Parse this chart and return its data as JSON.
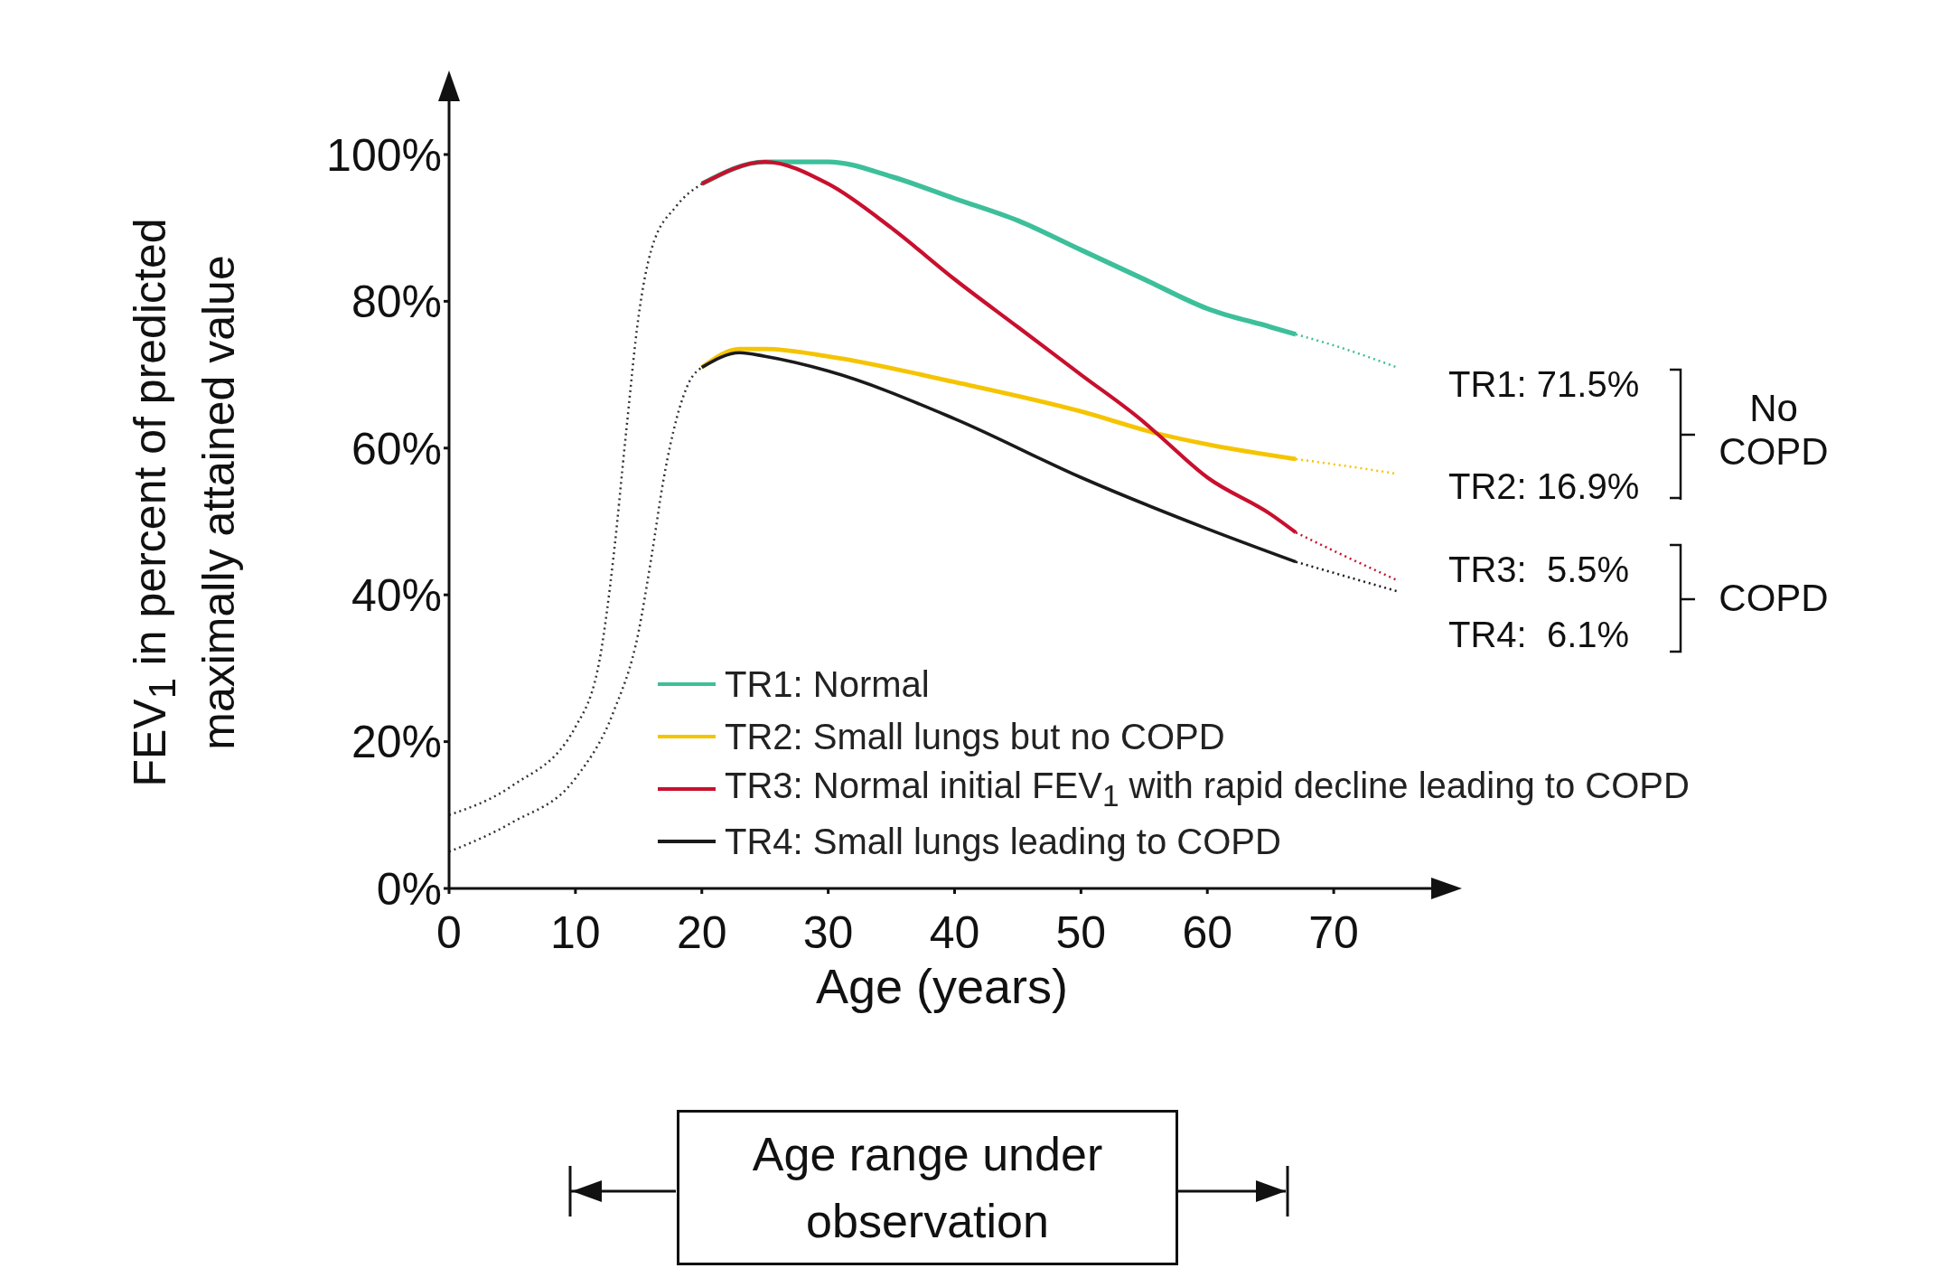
{
  "chart_data": {
    "type": "line",
    "xlabel": "Age (years)",
    "ylabel": "FEV$_{1}$ in percent of predicted maximally attained value",
    "xlim": [
      0,
      78
    ],
    "xticks": [
      0,
      10,
      20,
      30,
      40,
      50,
      60,
      70
    ],
    "ylim": [
      0,
      108
    ],
    "yticks": [
      {
        "value": 0,
        "label": "0%"
      },
      {
        "value": 20,
        "label": "20%"
      },
      {
        "value": 40,
        "label": "40%"
      },
      {
        "value": 60,
        "label": "60%"
      },
      {
        "value": 80,
        "label": "80%"
      },
      {
        "value": 100,
        "label": "100%"
      }
    ],
    "marker": "none",
    "legend": "bottom",
    "series": [
      {
        "name": "TR1: Normal",
        "color": "#3dbf9a",
        "line_style": "solid",
        "x": [
          20,
          25,
          30,
          35,
          40,
          45,
          50,
          55,
          60,
          65,
          67
        ],
        "values": [
          96,
          99,
          99,
          97,
          94,
          91,
          87,
          83,
          79,
          76.5,
          75.5
        ]
      },
      {
        "name": "TR2: Small lungs but no COPD",
        "color": "#f5c400",
        "line_style": "solid",
        "x": [
          20,
          23,
          25,
          30,
          40,
          50,
          56,
          60,
          67
        ],
        "values": [
          71,
          73.5,
          73.5,
          72.5,
          69,
          65,
          62,
          60.5,
          58.5
        ]
      },
      {
        "name": "TR3: Normal initial FEV$_{1}$ with rapid decline leading to COPD",
        "color": "#c8102e",
        "line_style": "solid",
        "x": [
          20,
          25,
          30,
          35,
          40,
          45,
          50,
          55,
          56,
          60,
          65,
          67
        ],
        "values": [
          96,
          99,
          96,
          90,
          83,
          76.5,
          70,
          63.5,
          62,
          56,
          51,
          48.5
        ]
      },
      {
        "name": "TR4: Small lungs leading to COPD",
        "color": "#1a1a1a",
        "line_style": "solid",
        "x": [
          20,
          23,
          25,
          30,
          40,
          50,
          60,
          67
        ],
        "values": [
          71,
          73,
          72.5,
          70.5,
          64,
          56,
          49,
          44.5
        ]
      },
      {
        "color": "#333333",
        "line_style": "dotted",
        "x": [
          0,
          5,
          10,
          12,
          13,
          14,
          15,
          16,
          18,
          20
        ],
        "values": [
          10,
          14,
          22,
          32,
          45,
          62,
          78,
          87,
          93,
          96
        ]
      },
      {
        "color": "#333333",
        "line_style": "dotted",
        "x": [
          0,
          5,
          10,
          13,
          15,
          16,
          17,
          18,
          19,
          20
        ],
        "values": [
          5,
          9,
          15,
          24,
          35,
          45,
          56,
          64,
          69,
          71
        ]
      },
      {
        "color": "#3dbf9a",
        "line_style": "dotted",
        "x": [
          67,
          70,
          75
        ],
        "values": [
          75.5,
          74,
          71
        ]
      },
      {
        "color": "#f5c400",
        "line_style": "dotted",
        "x": [
          67,
          70,
          75
        ],
        "values": [
          58.5,
          57.8,
          56.5
        ]
      },
      {
        "color": "#c8102e",
        "line_style": "dotted",
        "x": [
          67,
          70,
          75
        ],
        "values": [
          48.5,
          46,
          42
        ]
      },
      {
        "color": "#1a1a1a",
        "line_style": "dotted",
        "x": [
          67,
          70,
          75
        ],
        "values": [
          44.5,
          43,
          40.5
        ]
      }
    ],
    "annotations": [
      "TR1: 71.5%",
      "TR2: 16.9%",
      "TR3:  5.5%",
      "TR4:  6.1%",
      "No COPD",
      "COPD",
      "Age range under observation"
    ]
  }
}
